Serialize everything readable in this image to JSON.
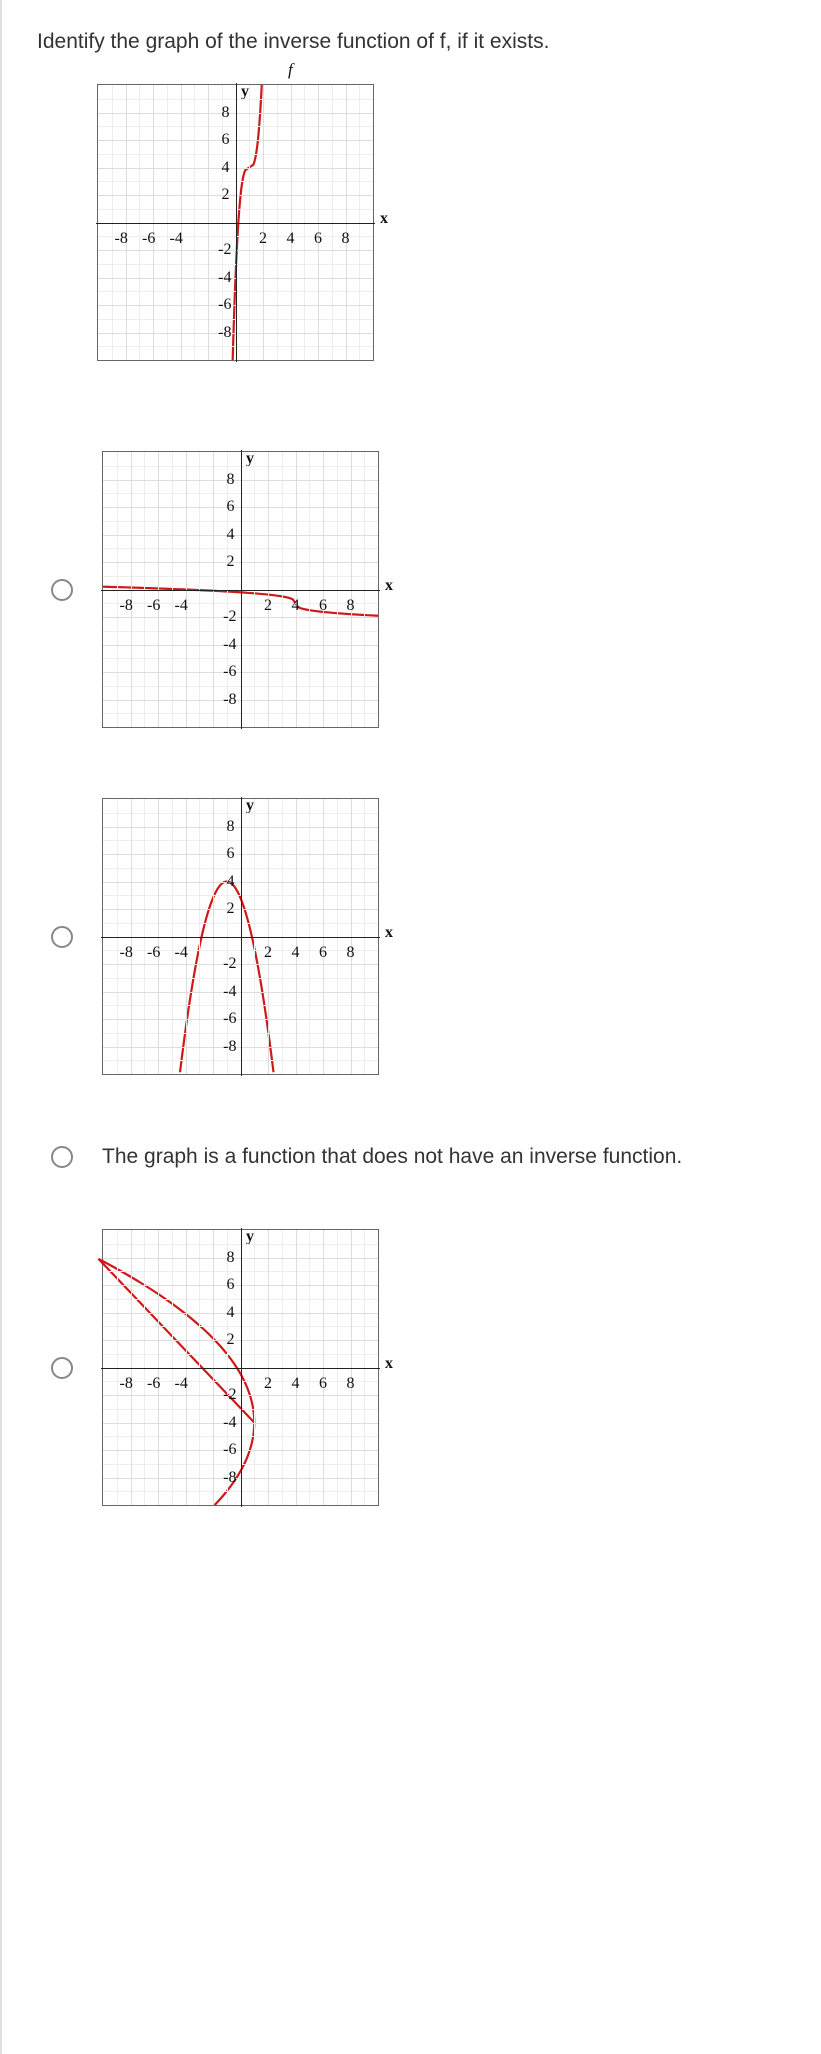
{
  "question": "Identify the graph of the inverse function of f, if it exists.",
  "main_graph": {
    "label_f": "f",
    "axis_y": "y",
    "axis_x": "x",
    "x_ticks": [
      "-8",
      "-6",
      "-4",
      "2",
      "4",
      "6",
      "8"
    ],
    "y_ticks_pos": [
      "8",
      "6",
      "4",
      "2"
    ],
    "y_ticks_neg": [
      "-2",
      "-4",
      "-6",
      "-8"
    ],
    "curve_color": "#d01818",
    "size": 275
  },
  "options": {
    "graph_size": 275,
    "curve_color": "#d01818",
    "opt1": {
      "axis_y": "y",
      "axis_x": "x",
      "x_ticks": [
        "-8",
        "-6",
        "-4",
        "4",
        "6",
        "8"
      ],
      "x_tick_special": "2",
      "y_ticks_pos": [
        "8",
        "6",
        "4",
        "2"
      ],
      "y_ticks_neg": [
        "-2",
        "-4",
        "-6",
        "-8"
      ]
    },
    "opt2": {
      "axis_y": "y",
      "axis_x": "x",
      "x_ticks": [
        "-8",
        "-6",
        "-4",
        "2",
        "4",
        "6",
        "8"
      ],
      "y_ticks_pos": [
        "8",
        "6",
        "4",
        "2"
      ],
      "y_ticks_neg": [
        "-2",
        "-4",
        "-6",
        "-8"
      ]
    },
    "opt3": {
      "text": "The graph is a function that does not have an inverse function."
    },
    "opt4": {
      "axis_y": "y",
      "axis_x": "x",
      "x_ticks": [
        "-8",
        "-6",
        "-4",
        "2",
        "4",
        "6",
        "8"
      ],
      "y_ticks_pos": [
        "8",
        "6",
        "4",
        "2"
      ],
      "y_ticks_neg": [
        "-2",
        "-4",
        "-6",
        "-8"
      ]
    }
  }
}
